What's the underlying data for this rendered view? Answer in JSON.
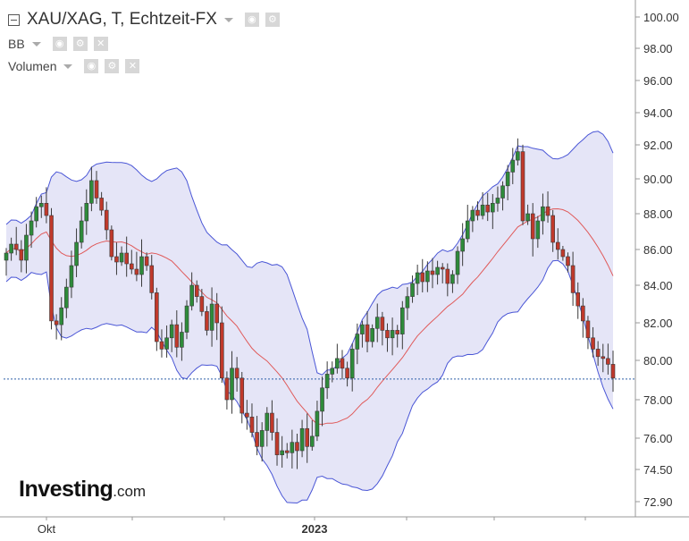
{
  "header": {
    "title": "XAU/XAG, T, Echtzeit-FX",
    "indicators": [
      "BB",
      "Volumen"
    ]
  },
  "logo": {
    "brand": "Investing",
    "suffix": ".com"
  },
  "chart_data": {
    "type": "candlestick",
    "title": "XAU/XAG, T, Echtzeit-FX",
    "y_ticks": [
      "100.00",
      "98.00",
      "96.00",
      "94.00",
      "92.00",
      "90.00",
      "88.00",
      "86.00",
      "84.00",
      "82.00",
      "80.00",
      "78.00",
      "76.00",
      "74.50",
      "72.90"
    ],
    "y_tick_values": [
      100,
      98,
      96,
      94,
      92,
      90,
      88,
      86,
      84,
      82,
      80,
      78,
      76,
      74.5,
      72.9
    ],
    "ylim": [
      72.9,
      100
    ],
    "x_ticks": [
      "Okt",
      "2023"
    ],
    "current_price": 79.05,
    "closes": [
      85.8,
      86.3,
      86.0,
      85.4,
      86.8,
      87.6,
      88.4,
      88.6,
      87.9,
      82.1,
      81.9,
      82.8,
      83.9,
      85.1,
      86.4,
      87.6,
      88.6,
      89.9,
      88.9,
      88.2,
      87.1,
      85.6,
      85.3,
      85.8,
      85.2,
      84.9,
      84.6,
      85.6,
      85.1,
      83.6,
      81.0,
      80.6,
      81.2,
      81.9,
      80.7,
      81.5,
      82.9,
      84.0,
      83.4,
      82.6,
      81.6,
      83.0,
      82.0,
      79.1,
      78.0,
      79.6,
      79.1,
      77.3,
      77.1,
      76.3,
      75.6,
      76.4,
      77.3,
      76.3,
      75.2,
      75.4,
      75.3,
      75.8,
      75.4,
      76.5,
      75.6,
      76.1,
      77.4,
      78.6,
      79.3,
      79.6,
      80.1,
      79.6,
      79.1,
      80.6,
      81.4,
      81.9,
      81.0,
      81.7,
      82.3,
      81.6,
      81.2,
      81.6,
      81.4,
      82.8,
      83.4,
      84.1,
      84.7,
      84.2,
      84.8,
      84.6,
      85.0,
      84.9,
      84.1,
      84.6,
      85.9,
      86.6,
      87.6,
      88.2,
      87.9,
      88.5,
      88.1,
      88.6,
      88.9,
      89.6,
      90.4,
      91.1,
      91.6,
      87.6,
      88.0,
      86.6,
      87.6,
      88.4,
      87.9,
      86.4,
      86.0,
      85.6,
      85.1,
      83.6,
      82.9,
      82.1,
      81.2,
      80.6,
      80.2,
      80.1,
      79.8,
      79.1
    ]
  }
}
